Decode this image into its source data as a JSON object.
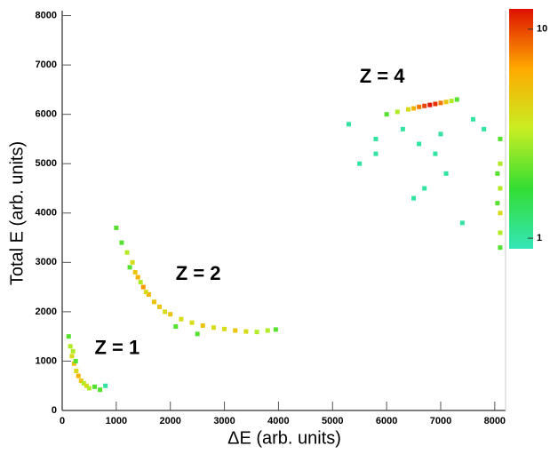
{
  "chart_data": {
    "type": "scatter",
    "xlabel": "ΔE (arb. units)",
    "ylabel": "Total E (arb. units)",
    "xlim": [
      0,
      8200
    ],
    "ylim": [
      0,
      8100
    ],
    "xticks": [
      0,
      1000,
      2000,
      3000,
      4000,
      5000,
      6000,
      7000,
      8000
    ],
    "yticks": [
      0,
      1000,
      2000,
      3000,
      4000,
      5000,
      6000,
      7000,
      8000
    ],
    "grid": false,
    "annotations": [
      "Z = 1",
      "Z = 2",
      "Z = 4"
    ],
    "annotation_x": [
      600,
      2100,
      5500
    ],
    "annotation_y": [
      1250,
      2750,
      6750
    ],
    "x": [
      120,
      150,
      180,
      220,
      260,
      300,
      350,
      400,
      450,
      500,
      600,
      700,
      200,
      250,
      800,
      1000,
      1100,
      1200,
      1300,
      1350,
      1400,
      1500,
      1600,
      1700,
      1800,
      1900,
      2000,
      2200,
      2400,
      2600,
      2800,
      3000,
      3200,
      3400,
      3600,
      3800,
      3950,
      1450,
      2100,
      2500,
      1550,
      1250,
      5300,
      5800,
      6000,
      6200,
      6400,
      6500,
      6600,
      6700,
      6800,
      6900,
      7000,
      7100,
      7200,
      7300,
      6300,
      6600,
      6900,
      7100,
      6700,
      7400,
      5500,
      5800,
      7600,
      7800,
      7000,
      6500,
      8100,
      8100,
      8100,
      8100,
      8100,
      8100,
      8050,
      8050
    ],
    "y": [
      1500,
      1300,
      1100,
      950,
      800,
      700,
      600,
      550,
      500,
      450,
      480,
      420,
      1200,
      1000,
      500,
      3700,
      3400,
      3200,
      3000,
      2800,
      2700,
      2500,
      2350,
      2200,
      2100,
      2000,
      1950,
      1850,
      1780,
      1720,
      1680,
      1650,
      1620,
      1600,
      1590,
      1620,
      1640,
      2600,
      1700,
      1550,
      2400,
      2900,
      5800,
      5500,
      6000,
      6050,
      6100,
      6120,
      6150,
      6170,
      6190,
      6210,
      6230,
      6250,
      6270,
      6300,
      5700,
      5400,
      5200,
      4800,
      4500,
      3800,
      5000,
      5200,
      5900,
      5700,
      5600,
      4300,
      5500,
      5000,
      4500,
      4000,
      3600,
      3300,
      4800,
      4200
    ],
    "counts": [
      2,
      3,
      4,
      5,
      4,
      6,
      5,
      3,
      4,
      3,
      2,
      2,
      3,
      2,
      1,
      2,
      2,
      3,
      4,
      5,
      6,
      7,
      6,
      5,
      5,
      4,
      5,
      4,
      4,
      5,
      4,
      4,
      5,
      4,
      3,
      3,
      2,
      3,
      2,
      2,
      4,
      2,
      1,
      1,
      2,
      3,
      4,
      6,
      8,
      10,
      12,
      11,
      8,
      5,
      3,
      2,
      1,
      1,
      1,
      1,
      1,
      1,
      1,
      1,
      1,
      1,
      1,
      1,
      2,
      3,
      3,
      4,
      3,
      2,
      2,
      2
    ],
    "zlim": [
      0.89,
      12.5
    ],
    "zticks": [
      1,
      10
    ],
    "zscale": "log",
    "colormap": [
      "#33e6b8",
      "#33dd33",
      "#c8ee22",
      "#ffaa00",
      "#dd1100"
    ]
  }
}
